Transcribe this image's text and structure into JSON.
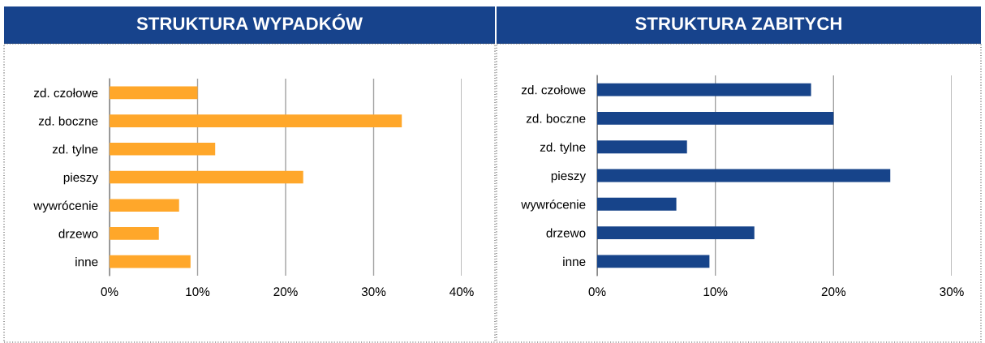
{
  "chart_data": [
    {
      "type": "bar",
      "orientation": "horizontal",
      "title": "STRUKTURA WYPADKÓW",
      "categories": [
        "zd. czołowe",
        "zd. boczne",
        "zd. tylne",
        "pieszy",
        "wywrócenie",
        "drzewo",
        "inne"
      ],
      "values": [
        10.0,
        33.2,
        12.0,
        22.0,
        7.9,
        5.6,
        9.2
      ],
      "color": "#ffa72a",
      "xlim": [
        0,
        40
      ],
      "xticks": [
        {
          "value": 0,
          "label": "0%"
        },
        {
          "value": 10,
          "label": "10%"
        },
        {
          "value": 20,
          "label": "20%"
        },
        {
          "value": 30,
          "label": "30%"
        },
        {
          "value": 40,
          "label": "40%"
        }
      ],
      "grid": "x"
    },
    {
      "type": "bar",
      "orientation": "horizontal",
      "title": "STRUKTURA ZABITYCH",
      "categories": [
        "zd. czołowe",
        "zd. boczne",
        "zd. tylne",
        "pieszy",
        "wywrócenie",
        "drzewo",
        "inne"
      ],
      "values": [
        18.1,
        20.0,
        7.6,
        24.8,
        6.7,
        13.3,
        9.5
      ],
      "color": "#17448a",
      "xlim": [
        0,
        30
      ],
      "xticks": [
        {
          "value": 0,
          "label": "0%"
        },
        {
          "value": 10,
          "label": "10%"
        },
        {
          "value": 20,
          "label": "20%"
        },
        {
          "value": 30,
          "label": "30%"
        }
      ],
      "grid": "x"
    }
  ]
}
